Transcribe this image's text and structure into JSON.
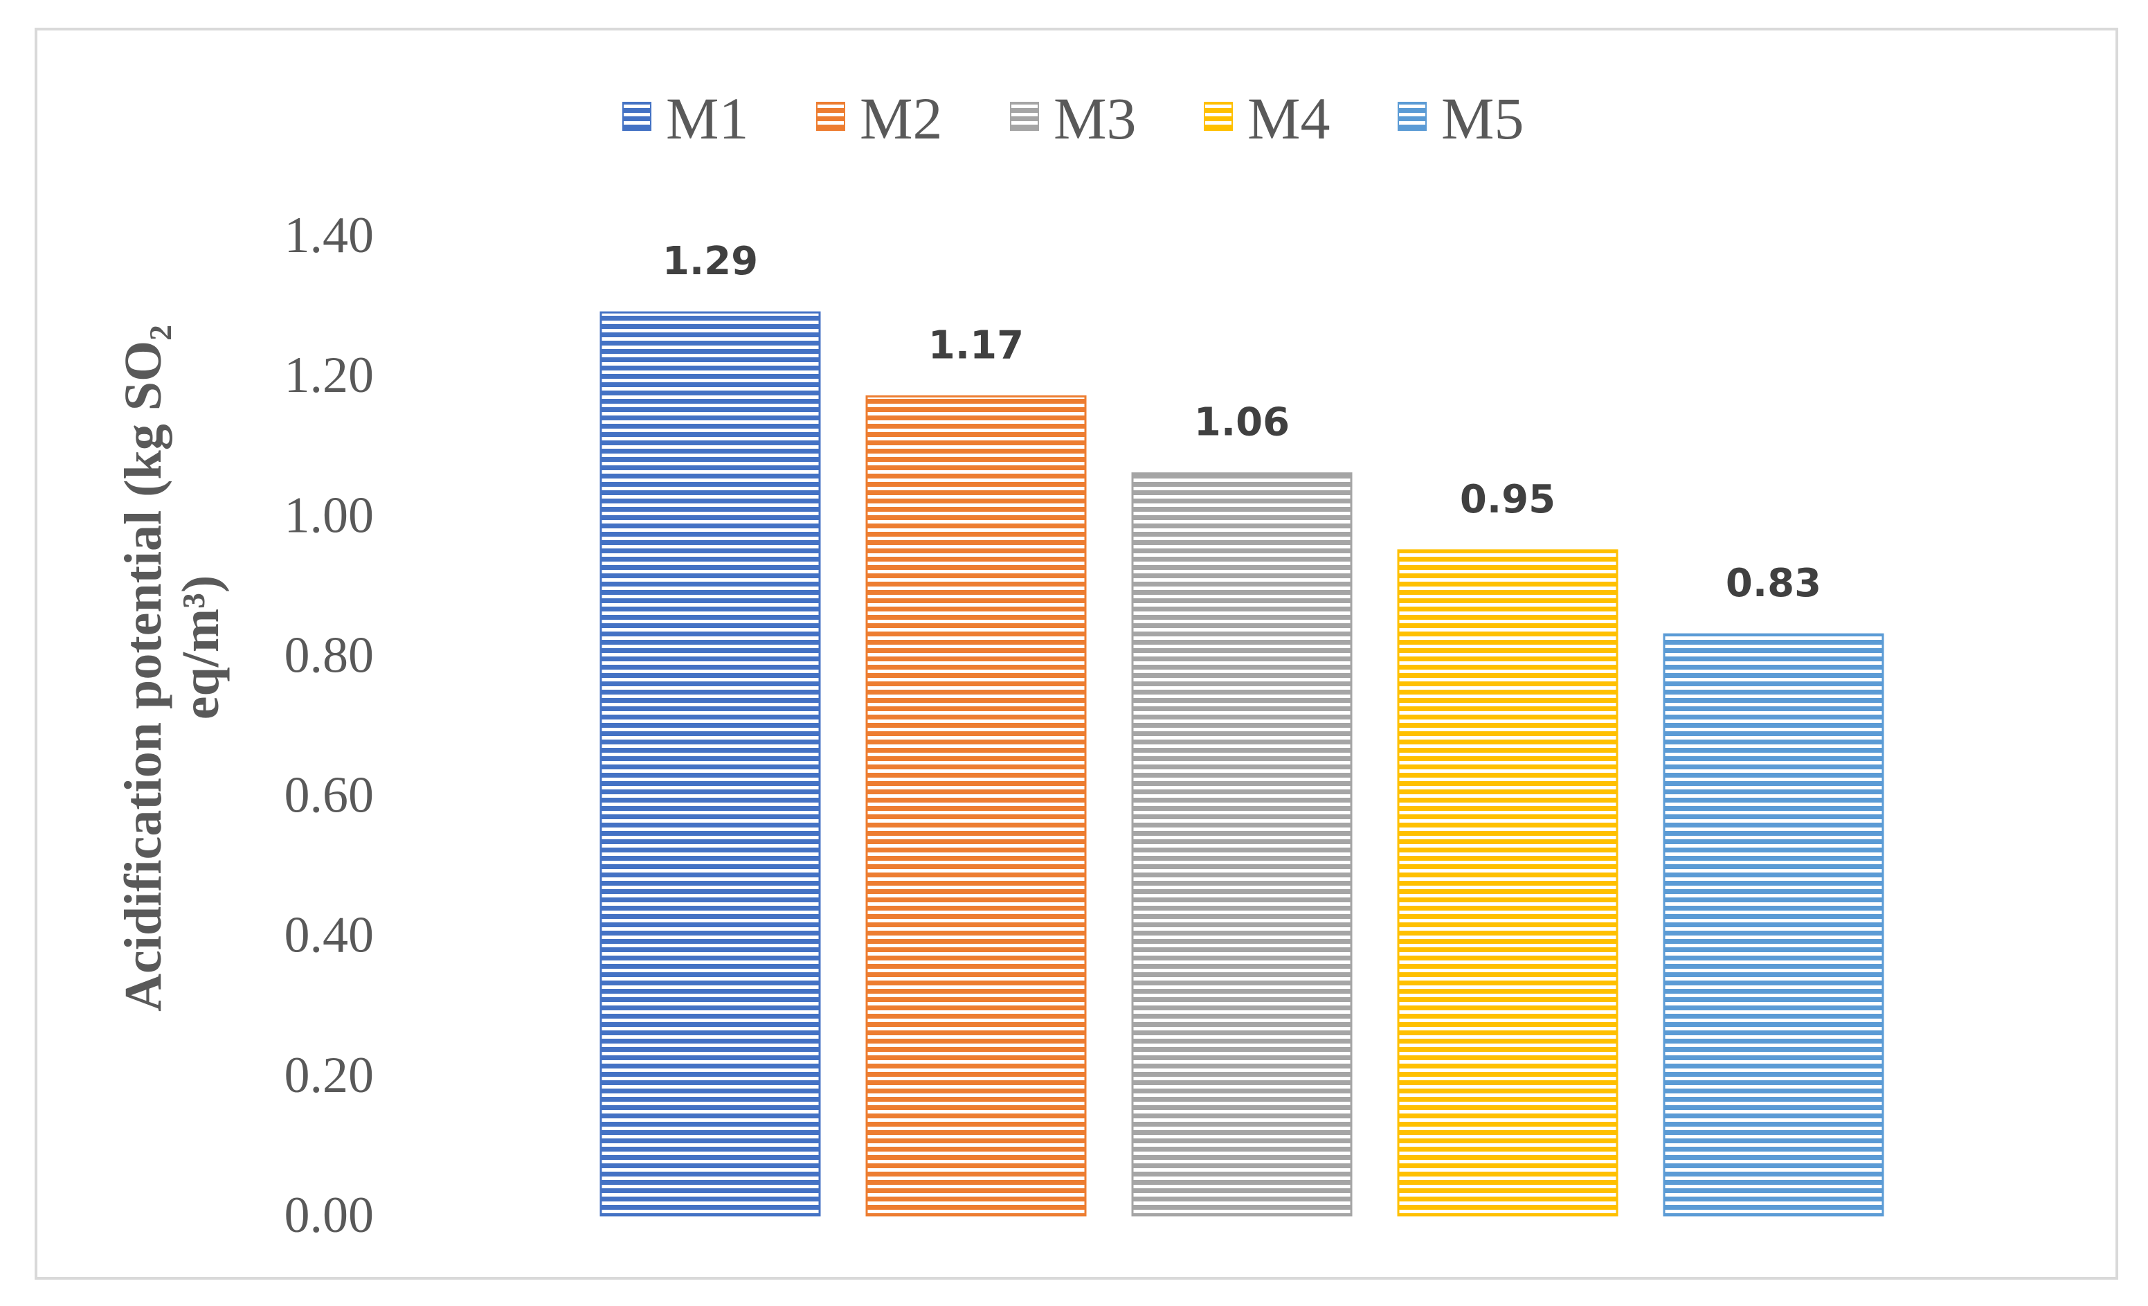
{
  "chart_data": {
    "type": "bar",
    "categories": [
      "M1",
      "M2",
      "M3",
      "M4",
      "M5"
    ],
    "series": [
      {
        "name": "M1",
        "value": 1.29,
        "color": "#4472c4"
      },
      {
        "name": "M2",
        "value": 1.17,
        "color": "#ed7d31"
      },
      {
        "name": "M3",
        "value": 1.06,
        "color": "#a5a5a5"
      },
      {
        "name": "M4",
        "value": 0.95,
        "color": "#ffc000"
      },
      {
        "name": "M5",
        "value": 0.83,
        "color": "#5b9bd5"
      }
    ],
    "data_labels": [
      "1.29",
      "1.17",
      "1.06",
      "0.95",
      "0.83"
    ],
    "ylabel_line1": "Acidification potential (kg SO₂",
    "ylabel_line2": "eq/m³)",
    "ylim": [
      0,
      1.4
    ],
    "yticks": [
      "0.00",
      "0.20",
      "0.40",
      "0.60",
      "0.80",
      "1.00",
      "1.20",
      "1.40"
    ],
    "ytick_values": [
      0,
      0.2,
      0.4,
      0.6,
      0.8,
      1.0,
      1.2,
      1.4
    ],
    "legend_position": "top",
    "grid": false,
    "bar_pattern": "horizontal-stripes"
  }
}
